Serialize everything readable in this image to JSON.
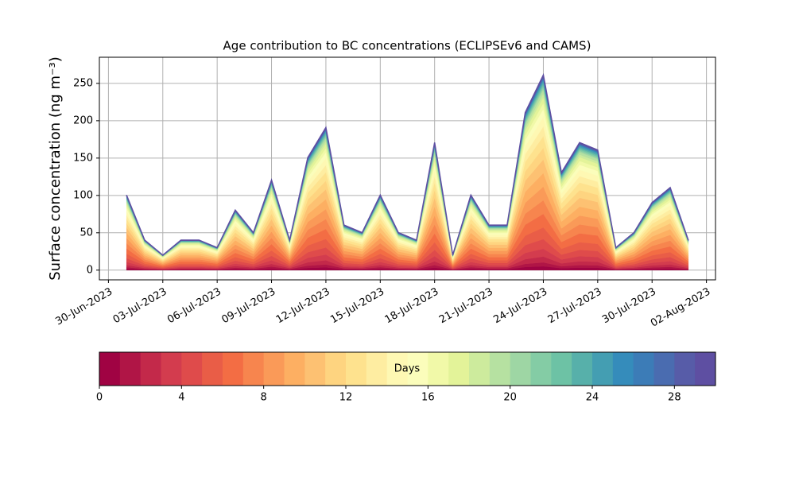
{
  "chart_data": {
    "type": "area",
    "stacked": true,
    "title": "Age contribution to BC concentrations (ECLIPSEv6 and CAMS)",
    "ylabel": "Surface concentration (ng m⁻³)",
    "x": [
      "2023-07-01",
      "2023-07-02",
      "2023-07-03",
      "2023-07-04",
      "2023-07-05",
      "2023-07-06",
      "2023-07-07",
      "2023-07-08",
      "2023-07-09",
      "2023-07-10",
      "2023-07-11",
      "2023-07-12",
      "2023-07-13",
      "2023-07-14",
      "2023-07-15",
      "2023-07-16",
      "2023-07-17",
      "2023-07-18",
      "2023-07-19",
      "2023-07-20",
      "2023-07-21",
      "2023-07-22",
      "2023-07-23",
      "2023-07-24",
      "2023-07-25",
      "2023-07-26",
      "2023-07-27",
      "2023-07-28",
      "2023-07-29",
      "2023-07-30",
      "2023-07-31",
      "2023-08-01"
    ],
    "xlim": [
      "2023-06-29T12:00",
      "2023-08-02T12:00"
    ],
    "xticks": [
      {
        "value": "2023-06-30",
        "label": "30-Jun-2023"
      },
      {
        "value": "2023-07-03",
        "label": "03-Jul-2023"
      },
      {
        "value": "2023-07-06",
        "label": "06-Jul-2023"
      },
      {
        "value": "2023-07-09",
        "label": "09-Jul-2023"
      },
      {
        "value": "2023-07-12",
        "label": "12-Jul-2023"
      },
      {
        "value": "2023-07-15",
        "label": "15-Jul-2023"
      },
      {
        "value": "2023-07-18",
        "label": "18-Jul-2023"
      },
      {
        "value": "2023-07-21",
        "label": "21-Jul-2023"
      },
      {
        "value": "2023-07-24",
        "label": "24-Jul-2023"
      },
      {
        "value": "2023-07-27",
        "label": "27-Jul-2023"
      },
      {
        "value": "2023-07-30",
        "label": "30-Jul-2023"
      },
      {
        "value": "2023-08-02",
        "label": "02-Aug-2023"
      }
    ],
    "ylim": [
      -13,
      285
    ],
    "yticks": [
      0,
      50,
      100,
      150,
      200,
      250
    ],
    "grid": true,
    "colorbar": {
      "label": "Days",
      "lim": [
        0,
        30
      ],
      "ticks": [
        0,
        4,
        8,
        12,
        16,
        20,
        24,
        28
      ]
    },
    "series": [
      {
        "color": "#a00343",
        "values": [
          2,
          0.8,
          0.4,
          0.8,
          0.8,
          0.6,
          1.6,
          1,
          2.4,
          0.8,
          3,
          3.8,
          1.2,
          1,
          2,
          1,
          0.8,
          3.4,
          0.4,
          2,
          1.2,
          1.2,
          4.2,
          5.2,
          2.6,
          3.4,
          3.2,
          0.6,
          1,
          1.8,
          2.2,
          0.8
        ]
      },
      {
        "color": "#b01546",
        "values": [
          2,
          0.8,
          0.4,
          0.8,
          0.8,
          0.6,
          1.6,
          1,
          2.4,
          0.8,
          3,
          3.8,
          1.2,
          1,
          2,
          1,
          0.8,
          3.4,
          0.4,
          2,
          1.2,
          1.2,
          4.2,
          5.2,
          2.6,
          3.4,
          3.2,
          0.6,
          1,
          1.8,
          2.2,
          0.8
        ]
      },
      {
        "color": "#c3294a",
        "values": [
          3,
          1.2,
          0.6,
          1.2,
          1.2,
          0.9,
          2.4,
          1.5,
          3.6,
          1.2,
          4.5,
          5.7,
          1.8,
          1.5,
          3,
          1.5,
          1.2,
          5.1,
          0.6,
          3,
          1.8,
          1.8,
          6.3,
          7.8,
          3.9,
          5.1,
          4.8,
          0.9,
          1.5,
          2.7,
          3.3,
          1.2
        ]
      },
      {
        "color": "#d33c4e",
        "values": [
          4,
          1.6,
          0.8,
          1.6,
          1.6,
          1.2,
          3.2,
          2,
          4.8,
          1.6,
          6,
          7.6,
          2.4,
          2,
          4,
          2,
          1.6,
          6.8,
          0.8,
          4,
          2.4,
          2.4,
          8.4,
          10.4,
          5.2,
          6.8,
          6.4,
          1.2,
          2,
          3.6,
          4.4,
          1.6
        ]
      },
      {
        "color": "#df4b4b",
        "values": [
          5,
          2,
          1,
          2,
          2,
          1.5,
          4,
          2.5,
          6,
          2,
          7.5,
          9.5,
          3,
          2.5,
          5,
          2.5,
          2,
          8.5,
          1,
          5,
          3,
          3,
          10.5,
          13,
          6.5,
          8.5,
          8,
          1.5,
          2.5,
          4.5,
          5.5,
          2
        ]
      },
      {
        "color": "#e95d47",
        "values": [
          6,
          2.4,
          1.2,
          2.4,
          2.4,
          1.8,
          4.8,
          3,
          7.2,
          2.4,
          9,
          11.4,
          3.6,
          3,
          6,
          3,
          2.4,
          10.2,
          1.2,
          6,
          3.6,
          3.6,
          12.6,
          15.6,
          7.8,
          10.2,
          9.6,
          1.8,
          3,
          5.4,
          6.6,
          2.4
        ]
      },
      {
        "color": "#f36d44",
        "values": [
          7,
          2.8,
          1.4,
          2.8,
          2.8,
          2.1,
          5.6,
          3.5,
          8.4,
          2.8,
          10.5,
          13.3,
          4.2,
          3.5,
          7,
          3.5,
          2.8,
          11.9,
          1.4,
          7,
          4.2,
          4.2,
          14.7,
          18.2,
          9.1,
          11.9,
          11.2,
          2.1,
          3.5,
          6.3,
          7.7,
          2.8
        ]
      },
      {
        "color": "#f7854e",
        "values": [
          7,
          2.8,
          1.4,
          2.8,
          2.8,
          2.1,
          5.6,
          3.5,
          8.4,
          2.8,
          10.5,
          13.3,
          4.2,
          3.5,
          7,
          3.5,
          2.8,
          11.9,
          1.4,
          7,
          4.2,
          4.2,
          14.7,
          18.2,
          9.1,
          11.9,
          11.2,
          2.1,
          3.5,
          6.3,
          7.7,
          2.8
        ]
      },
      {
        "color": "#fa9a58",
        "values": [
          7,
          2.8,
          1.4,
          2.8,
          2.8,
          2.1,
          5.6,
          3.5,
          8.4,
          2.8,
          10.5,
          13.3,
          4.2,
          3.5,
          7,
          3.5,
          2.8,
          11.9,
          1.4,
          7,
          4.2,
          4.2,
          14.7,
          18.2,
          9.1,
          11.9,
          11.2,
          2.1,
          3.5,
          6.3,
          7.7,
          2.8
        ]
      },
      {
        "color": "#fdaf62",
        "values": [
          7,
          2.8,
          1.4,
          2.8,
          2.8,
          2.1,
          5.6,
          3.5,
          8.4,
          2.8,
          10.5,
          13.3,
          4.2,
          3.5,
          7,
          3.5,
          2.8,
          11.9,
          1.4,
          7,
          4.2,
          4.2,
          14.7,
          18.2,
          9.1,
          11.9,
          11.2,
          2.1,
          3.5,
          6.3,
          7.7,
          2.8
        ]
      },
      {
        "color": "#fdc172",
        "values": [
          7,
          2.8,
          1.4,
          2.8,
          2.8,
          2.1,
          5.6,
          3.5,
          8.4,
          2.8,
          10.5,
          13.3,
          4.2,
          3.5,
          7,
          3.5,
          2.8,
          11.9,
          1.4,
          7,
          4.2,
          4.2,
          14.7,
          18.2,
          9.1,
          11.9,
          11.2,
          2.1,
          3.5,
          6.3,
          7.7,
          2.8
        ]
      },
      {
        "color": "#fed480",
        "values": [
          6,
          2.4,
          1.2,
          2.4,
          2.4,
          1.8,
          4.8,
          3,
          7.2,
          2.4,
          9,
          11.4,
          3.6,
          3,
          6,
          3,
          2.4,
          10.2,
          1.2,
          6,
          3.6,
          3.6,
          12.6,
          15.6,
          7.8,
          10.2,
          9.6,
          1.8,
          3,
          5.4,
          6.6,
          2.4
        ]
      },
      {
        "color": "#fee28e",
        "values": [
          6,
          2.4,
          1.2,
          2.4,
          2.4,
          1.8,
          4.8,
          3,
          7.2,
          2.4,
          9,
          11.4,
          3.6,
          3,
          6,
          3,
          2.4,
          10.2,
          1.2,
          6,
          3.6,
          3.6,
          12.6,
          15.6,
          7.8,
          10.2,
          9.6,
          1.8,
          3,
          5.4,
          6.6,
          2.4
        ]
      },
      {
        "color": "#feeda1",
        "values": [
          5,
          2,
          1,
          2,
          2,
          1.5,
          4,
          2.5,
          6,
          2,
          7.5,
          9.5,
          3,
          2.5,
          5,
          2.5,
          2,
          8.5,
          1,
          5,
          3,
          3,
          10.5,
          13,
          6.5,
          8.5,
          8,
          1.5,
          2.5,
          4.5,
          5.5,
          2
        ]
      },
      {
        "color": "#fef8b3",
        "values": [
          5,
          2,
          1,
          2,
          2,
          1.5,
          4,
          2.5,
          6,
          2,
          7.5,
          9.5,
          3,
          2.5,
          5,
          2.5,
          2,
          8.5,
          1,
          5,
          3,
          3,
          10.5,
          13,
          6.5,
          8.5,
          8,
          1.5,
          2.5,
          4.5,
          5.5,
          2
        ]
      },
      {
        "color": "#fbfdbb",
        "values": [
          4,
          1.6,
          0.8,
          1.6,
          1.6,
          1.2,
          3.2,
          2,
          4.8,
          1.6,
          6,
          7.6,
          2.4,
          2,
          4,
          2,
          1.6,
          6.8,
          0.8,
          4,
          2.4,
          2.4,
          8.4,
          10.4,
          5.2,
          6.8,
          6.4,
          1.2,
          2,
          3.6,
          4.4,
          1.6
        ]
      },
      {
        "color": "#f1f9a8",
        "values": [
          3,
          1.2,
          0.6,
          1.2,
          1.2,
          0.9,
          2.4,
          1.5,
          3.6,
          1.2,
          4.5,
          5.7,
          1.8,
          1.5,
          3,
          1.5,
          1.2,
          5.1,
          0.6,
          3,
          1.8,
          1.8,
          6.3,
          7.8,
          3.9,
          5.1,
          4.8,
          0.9,
          1.5,
          2.7,
          3.3,
          1.2
        ]
      },
      {
        "color": "#e3f399",
        "values": [
          3,
          1.2,
          0.6,
          1.2,
          1.2,
          0.9,
          2.4,
          1.5,
          3.6,
          1.2,
          4.5,
          5.7,
          1.8,
          1.5,
          3,
          1.5,
          1.2,
          5.1,
          0.6,
          3,
          1.8,
          1.8,
          6.3,
          7.8,
          3.9,
          5.1,
          4.8,
          0.9,
          1.5,
          2.7,
          3.3,
          1.2
        ]
      },
      {
        "color": "#cdeb9d",
        "values": [
          2,
          0.8,
          0.4,
          0.8,
          0.8,
          0.6,
          1.6,
          1,
          2.4,
          0.8,
          3,
          3.8,
          1.2,
          1,
          2,
          1,
          0.8,
          3.4,
          0.4,
          2,
          1.2,
          1.2,
          4.2,
          5.2,
          2.6,
          3.4,
          3.2,
          0.6,
          1,
          1.8,
          2.2,
          0.8
        ]
      },
      {
        "color": "#b6e1a1",
        "values": [
          2,
          0.8,
          0.4,
          0.8,
          0.8,
          0.6,
          1.6,
          1,
          2.4,
          0.8,
          3,
          3.8,
          1.2,
          1,
          2,
          1,
          0.8,
          3.4,
          0.4,
          2,
          1.2,
          1.2,
          4.2,
          5.2,
          2.6,
          3.4,
          3.2,
          0.6,
          1,
          1.8,
          2.2,
          0.8
        ]
      },
      {
        "color": "#9ed6a4",
        "values": [
          1,
          0.4,
          0.2,
          0.4,
          0.4,
          0.3,
          0.8,
          0.5,
          1.2,
          0.4,
          1.5,
          1.9,
          0.6,
          0.5,
          1,
          0.5,
          0.4,
          1.7,
          0.2,
          1,
          0.6,
          0.6,
          2.1,
          2.6,
          1.3,
          1.7,
          1.6,
          0.3,
          0.5,
          0.9,
          1.1,
          0.4
        ]
      },
      {
        "color": "#84cca5",
        "values": [
          1,
          0.4,
          0.2,
          0.4,
          0.4,
          0.3,
          0.8,
          0.5,
          1.2,
          0.4,
          1.5,
          1.9,
          0.6,
          0.5,
          1,
          0.5,
          0.4,
          1.7,
          0.2,
          1,
          0.6,
          0.6,
          2.1,
          2.6,
          1.3,
          1.7,
          1.6,
          0.3,
          0.5,
          0.9,
          1.1,
          0.4
        ]
      },
      {
        "color": "#6dc2a5",
        "values": [
          1,
          0.4,
          0.2,
          0.4,
          0.4,
          0.3,
          0.8,
          0.5,
          1.2,
          0.4,
          1.5,
          1.9,
          0.6,
          0.5,
          1,
          0.5,
          0.4,
          1.7,
          0.2,
          1,
          0.6,
          0.6,
          2.1,
          2.6,
          1.3,
          1.7,
          1.6,
          0.3,
          0.5,
          0.9,
          1.1,
          0.4
        ]
      },
      {
        "color": "#57b0aa",
        "values": [
          1,
          0.4,
          0.2,
          0.4,
          0.4,
          0.3,
          0.8,
          0.5,
          1.2,
          0.4,
          1.5,
          1.9,
          0.6,
          0.5,
          1,
          0.5,
          0.4,
          1.7,
          0.2,
          1,
          0.6,
          0.6,
          2.1,
          2.6,
          1.3,
          1.7,
          1.6,
          0.3,
          0.5,
          0.9,
          1.1,
          0.4
        ]
      },
      {
        "color": "#449eb2",
        "values": [
          1,
          0.4,
          0.2,
          0.4,
          0.4,
          0.3,
          0.8,
          0.5,
          1.2,
          0.4,
          1.5,
          1.9,
          0.6,
          0.5,
          1,
          0.5,
          0.4,
          1.7,
          0.2,
          1,
          0.6,
          0.6,
          2.1,
          2.6,
          1.3,
          1.7,
          1.6,
          0.3,
          0.5,
          0.9,
          1.1,
          0.4
        ]
      },
      {
        "color": "#358cbb",
        "values": [
          0.5,
          0.2,
          0.1,
          0.2,
          0.2,
          0.15,
          0.4,
          0.25,
          0.6,
          0.2,
          0.75,
          0.95,
          0.3,
          0.25,
          0.5,
          0.25,
          0.2,
          0.85,
          0.1,
          0.5,
          0.3,
          0.3,
          1.05,
          1.3,
          0.65,
          0.85,
          0.8,
          0.15,
          0.25,
          0.45,
          0.55,
          0.2
        ]
      },
      {
        "color": "#3c7cb7",
        "values": [
          0.5,
          0.2,
          0.1,
          0.2,
          0.2,
          0.15,
          0.4,
          0.25,
          0.6,
          0.2,
          0.75,
          0.95,
          0.3,
          0.25,
          0.5,
          0.25,
          0.2,
          0.85,
          0.1,
          0.5,
          0.3,
          0.3,
          1.05,
          1.3,
          0.65,
          0.85,
          0.8,
          0.15,
          0.25,
          0.45,
          0.55,
          0.2
        ]
      },
      {
        "color": "#4a6cb0",
        "values": [
          0.5,
          0.2,
          0.1,
          0.2,
          0.2,
          0.15,
          0.4,
          0.25,
          0.6,
          0.2,
          0.75,
          0.95,
          0.3,
          0.25,
          0.5,
          0.25,
          0.2,
          0.85,
          0.1,
          0.5,
          0.3,
          0.3,
          1.05,
          1.3,
          0.65,
          0.85,
          0.8,
          0.15,
          0.25,
          0.45,
          0.55,
          0.2
        ]
      },
      {
        "color": "#575ca8",
        "values": [
          0.5,
          0.2,
          0.1,
          0.2,
          0.2,
          0.15,
          0.4,
          0.25,
          0.6,
          0.2,
          0.75,
          0.95,
          0.3,
          0.25,
          0.5,
          0.25,
          0.2,
          0.85,
          0.1,
          0.5,
          0.3,
          0.3,
          1.05,
          1.3,
          0.65,
          0.85,
          0.8,
          0.15,
          0.25,
          0.45,
          0.55,
          0.2
        ]
      },
      {
        "color": "#5e4fa2",
        "values": [
          0.5,
          0.2,
          0.1,
          0.2,
          0.2,
          0.15,
          0.4,
          0.25,
          0.6,
          0.2,
          0.75,
          0.95,
          0.3,
          0.25,
          0.5,
          0.25,
          0.2,
          0.85,
          0.1,
          0.5,
          0.3,
          0.3,
          1.05,
          1.3,
          0.65,
          0.85,
          0.8,
          0.15,
          0.25,
          0.45,
          0.55,
          0.2
        ]
      }
    ]
  }
}
